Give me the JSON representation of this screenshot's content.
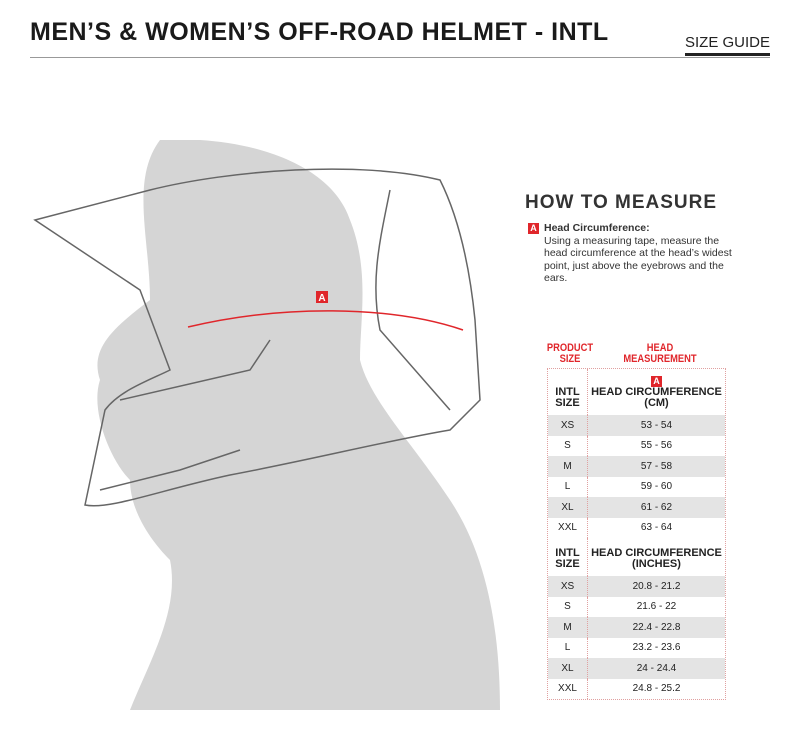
{
  "header": {
    "title": "MEN’S & WOMEN’S OFF-ROAD HELMET - INTL",
    "size_guide_link": "SIZE GUIDE"
  },
  "illustration": {
    "marker": "A"
  },
  "how_to_measure": {
    "heading": "HOW TO MEASURE",
    "items": [
      {
        "marker": "A",
        "label": "Head Circumference:",
        "text": "Using a measuring tape, measure the head circumference at the head’s widest point, just above the eyebrows and the ears."
      }
    ]
  },
  "table": {
    "col_product": "PRODUCT SIZE",
    "col_measurement": "HEAD MEASUREMENT",
    "marker": "A",
    "sections": [
      {
        "size_label": "INTL SIZE",
        "measure_label": "HEAD CIRCUMFERENCE",
        "unit": "(CM)",
        "rows": [
          [
            "XS",
            "53 - 54"
          ],
          [
            "S",
            "55 - 56"
          ],
          [
            "M",
            "57 - 58"
          ],
          [
            "L",
            "59 - 60"
          ],
          [
            "XL",
            "61 - 62"
          ],
          [
            "XXL",
            "63 - 64"
          ]
        ]
      },
      {
        "size_label": "INTL SIZE",
        "measure_label": "HEAD CIRCUMFERENCE",
        "unit": "(INCHES)",
        "rows": [
          [
            "XS",
            "20.8 - 21.2"
          ],
          [
            "S",
            "21.6 - 22"
          ],
          [
            "M",
            "22.4 - 22.8"
          ],
          [
            "L",
            "23.2 - 23.6"
          ],
          [
            "XL",
            "24 - 24.4"
          ],
          [
            "XXL",
            "24.8 - 25.2"
          ]
        ]
      }
    ]
  },
  "colors": {
    "accent": "#e0262b",
    "row_shade": "#e4e4e4"
  }
}
